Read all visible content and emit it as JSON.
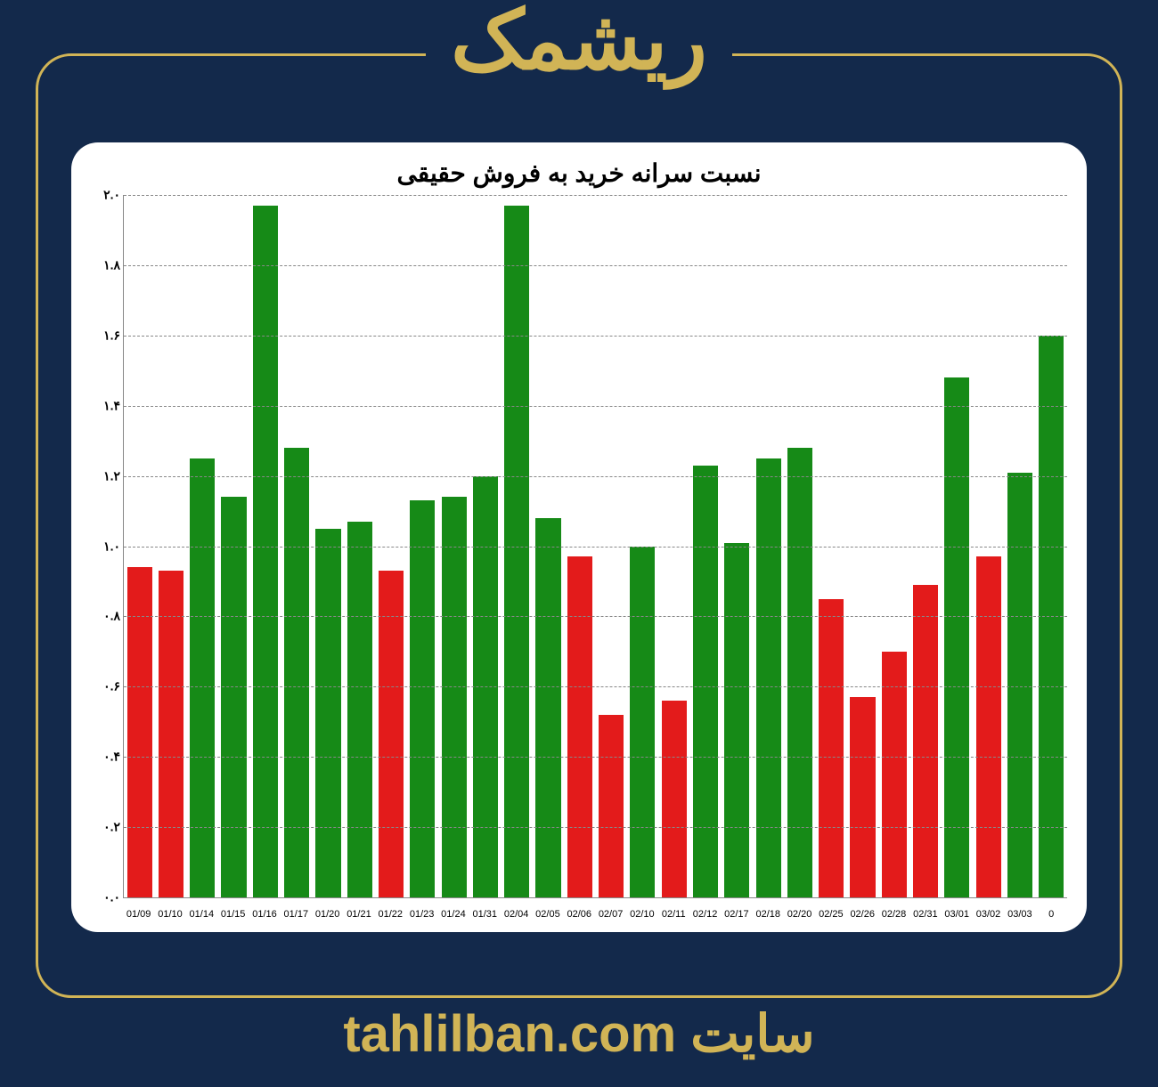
{
  "page": {
    "background_color": "#13294b",
    "accent_color": "#d1b456"
  },
  "header": {
    "title": "ریشمک",
    "title_color": "#d1b456",
    "title_fontsize": 92
  },
  "footer": {
    "prefix": "سایت ",
    "site": "tahlilban.com",
    "color": "#d1b456",
    "fontsize": 58
  },
  "chart": {
    "type": "bar",
    "title": "نسبت سرانه خرید به فروش حقیقی",
    "title_fontsize": 28,
    "title_color": "#000000",
    "background_color": "#ffffff",
    "grid_color": "#888888",
    "grid_style": "dashed",
    "ylim": [
      0.0,
      2.0
    ],
    "ytick_step": 0.2,
    "yticks": [
      "۰.۰",
      "۰.۲",
      "۰.۴",
      "۰.۶",
      "۰.۸",
      "۱.۰",
      "۱.۲",
      "۱.۴",
      "۱.۶",
      "۱.۸",
      "۲.۰"
    ],
    "bar_width": 0.9,
    "positive_color": "#168a17",
    "negative_color": "#e31b1b",
    "categories": [
      "01/09",
      "01/10",
      "01/14",
      "01/15",
      "01/16",
      "01/17",
      "01/20",
      "01/21",
      "01/22",
      "01/23",
      "01/24",
      "01/31",
      "02/04",
      "02/05",
      "02/06",
      "02/07",
      "02/10",
      "02/11",
      "02/12",
      "02/17",
      "02/18",
      "02/20",
      "02/25",
      "02/26",
      "02/28",
      "02/31",
      "03/01",
      "03/02",
      "03/03",
      "0"
    ],
    "values": [
      0.94,
      0.93,
      1.25,
      1.14,
      1.97,
      1.28,
      1.05,
      1.07,
      0.93,
      1.13,
      1.14,
      1.2,
      1.97,
      1.08,
      0.97,
      0.52,
      1.0,
      0.56,
      1.23,
      1.01,
      1.25,
      1.28,
      0.85,
      0.57,
      0.7,
      0.89,
      1.48,
      0.97,
      1.21,
      1.6
    ],
    "colors": [
      "#e31b1b",
      "#e31b1b",
      "#168a17",
      "#168a17",
      "#168a17",
      "#168a17",
      "#168a17",
      "#168a17",
      "#e31b1b",
      "#168a17",
      "#168a17",
      "#168a17",
      "#168a17",
      "#168a17",
      "#e31b1b",
      "#e31b1b",
      "#168a17",
      "#e31b1b",
      "#168a17",
      "#168a17",
      "#168a17",
      "#168a17",
      "#e31b1b",
      "#e31b1b",
      "#e31b1b",
      "#e31b1b",
      "#168a17",
      "#e31b1b",
      "#168a17",
      "#168a17"
    ]
  }
}
